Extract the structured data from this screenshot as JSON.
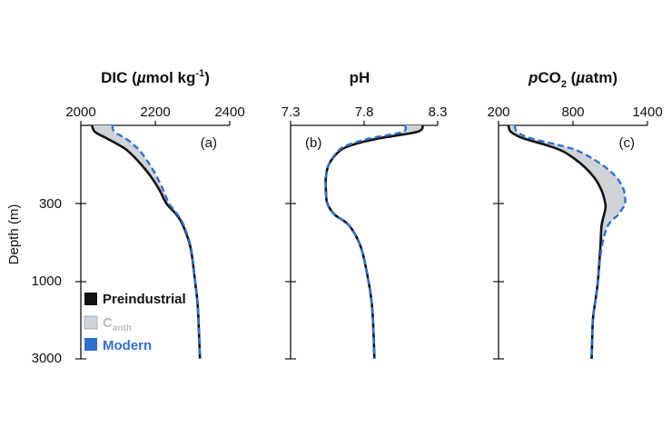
{
  "colors": {
    "preindustrial": "#111111",
    "modern": "#2f6fd0",
    "canth_fill": "#cfd4d9",
    "canth_label": "#b8bdc2"
  },
  "y_axis": {
    "label": "Depth (m)",
    "scale": "log-like",
    "ticks": [
      "300",
      "1000",
      "3000"
    ]
  },
  "legend": {
    "placement": "bottom-left of panel (a)",
    "items": [
      {
        "key": "preindustrial",
        "label": "Preindustrial"
      },
      {
        "key": "canth",
        "label": "C",
        "sub": "anth"
      },
      {
        "key": "modern",
        "label": "Modern"
      }
    ]
  },
  "panels": [
    {
      "id": "a",
      "tag": "(a)",
      "title": {
        "pre": "DIC (",
        "italic": "µ",
        "mid": "mol kg",
        "sup": "-1",
        "post": ")"
      },
      "ticks": [
        "2000",
        "2200",
        "2400"
      ]
    },
    {
      "id": "b",
      "tag": "(b)",
      "title": {
        "pre": "pH",
        "italic": "",
        "mid": "",
        "sup": "",
        "post": ""
      },
      "ticks": [
        "7.3",
        "7.8",
        "8.3"
      ]
    },
    {
      "id": "c",
      "tag": "(c)",
      "title": {
        "italic_p": "p",
        "pre": "CO",
        "sub": "2",
        "space": " (",
        "italic": "µ",
        "post": "atm)"
      },
      "ticks": [
        "200",
        "800",
        "1400"
      ]
    }
  ],
  "chart_data": [
    {
      "type": "line",
      "panel": "a",
      "xlim": [
        2000,
        2400
      ],
      "ylim": [
        0,
        3000
      ],
      "x_axis_position": "top",
      "series": [
        {
          "name": "Preindustrial",
          "depth": [
            0,
            25,
            50,
            75,
            100,
            150,
            200,
            250,
            300,
            400,
            500,
            700,
            1000,
            1500,
            2000,
            3000
          ],
          "values": [
            2030,
            2038,
            2070,
            2102,
            2128,
            2162,
            2190,
            2212,
            2230,
            2257,
            2275,
            2295,
            2307,
            2313,
            2316,
            2320
          ]
        },
        {
          "name": "Modern",
          "depth": [
            0,
            25,
            50,
            75,
            100,
            150,
            200,
            250,
            300,
            400,
            500,
            700,
            1000,
            1500,
            2000,
            3000
          ],
          "values": [
            2085,
            2090,
            2120,
            2142,
            2160,
            2185,
            2205,
            2222,
            2237,
            2260,
            2277,
            2296,
            2307,
            2313,
            2316,
            2320
          ]
        }
      ]
    },
    {
      "type": "line",
      "panel": "b",
      "xlim": [
        7.3,
        8.3
      ],
      "ylim": [
        0,
        3000
      ],
      "x_axis_position": "top",
      "series": [
        {
          "name": "Preindustrial",
          "depth": [
            0,
            25,
            50,
            75,
            100,
            150,
            200,
            250,
            300,
            400,
            500,
            700,
            1000,
            1500,
            2000,
            3000
          ],
          "values": [
            8.2,
            8.16,
            7.9,
            7.72,
            7.63,
            7.56,
            7.54,
            7.54,
            7.55,
            7.6,
            7.7,
            7.78,
            7.83,
            7.85,
            7.86,
            7.87
          ]
        },
        {
          "name": "Modern",
          "depth": [
            0,
            25,
            50,
            75,
            100,
            150,
            200,
            250,
            300,
            400,
            500,
            700,
            1000,
            1500,
            2000,
            3000
          ],
          "values": [
            8.08,
            8.06,
            7.84,
            7.69,
            7.62,
            7.56,
            7.54,
            7.54,
            7.55,
            7.6,
            7.7,
            7.78,
            7.83,
            7.85,
            7.86,
            7.87
          ]
        }
      ]
    },
    {
      "type": "line",
      "panel": "c",
      "xlim": [
        200,
        1400
      ],
      "ylim": [
        0,
        3000
      ],
      "x_axis_position": "top",
      "series": [
        {
          "name": "Preindustrial",
          "depth": [
            0,
            25,
            50,
            75,
            100,
            150,
            200,
            250,
            300,
            350,
            400,
            500,
            700,
            1000,
            1500,
            2000,
            3000
          ],
          "values": [
            280,
            300,
            400,
            580,
            720,
            870,
            970,
            1030,
            1060,
            1060,
            1050,
            1030,
            1020,
            1000,
            980,
            960,
            950
          ]
        },
        {
          "name": "Modern",
          "depth": [
            0,
            25,
            50,
            75,
            100,
            150,
            200,
            250,
            300,
            350,
            400,
            500,
            700,
            1000,
            1500,
            2000,
            3000
          ],
          "values": [
            330,
            350,
            460,
            680,
            850,
            1030,
            1150,
            1210,
            1220,
            1195,
            1165,
            1080,
            1030,
            1000,
            980,
            960,
            950
          ]
        }
      ]
    }
  ]
}
